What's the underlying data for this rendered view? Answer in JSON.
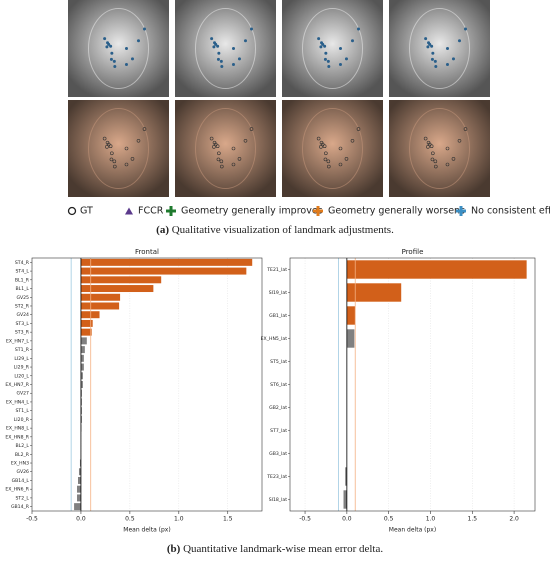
{
  "legend": [
    "GT",
    "FCCR",
    "Geometry generally improves",
    "Geometry generally worsens",
    "No consistent effect"
  ],
  "caption_a": {
    "label": "(a)",
    "text": "Qualitative visualization of landmark adjustments."
  },
  "caption_b": {
    "label": "(b)",
    "text": "Quantitative landmark-wise mean error delta."
  },
  "chart_data": [
    {
      "type": "hbar",
      "title": "Frontal",
      "xlabel": "Mean delta (px)",
      "categories": [
        "ST4_R",
        "ST4_L",
        "BL1_R",
        "BL1_L",
        "GV25",
        "ST2_R",
        "GV24",
        "ST3_L",
        "ST3_R",
        "EX_HN7_L",
        "ST1_R",
        "LI29_L",
        "LI29_R",
        "LI20_L",
        "EX_HN7_R",
        "GV27",
        "EX_HN4_L",
        "ST1_L",
        "LI20_R",
        "EX_HN8_L",
        "EX_HN8_R",
        "BL2_L",
        "BL2_R",
        "EX_HN3",
        "GV26",
        "GB14_L",
        "EX_HN6_R",
        "ST2_L",
        "GB14_R"
      ],
      "values": [
        1.75,
        1.69,
        0.82,
        0.74,
        0.4,
        0.39,
        0.19,
        0.12,
        0.11,
        0.06,
        0.04,
        0.03,
        0.03,
        0.02,
        0.02,
        0.01,
        0.01,
        0.01,
        0.01,
        0.005,
        0,
        0,
        0,
        -0.01,
        -0.02,
        -0.03,
        -0.04,
        -0.04,
        -0.07
      ],
      "colors": [
        "#d2601a",
        "#d2601a",
        "#d2601a",
        "#d2601a",
        "#d2601a",
        "#d2601a",
        "#d2601a",
        "#d2601a",
        "#d2601a",
        "#808080",
        "#808080",
        "#808080",
        "#808080",
        "#808080",
        "#808080",
        "#808080",
        "#808080",
        "#808080",
        "#808080",
        "#808080",
        "#808080",
        "#808080",
        "#808080",
        "#808080",
        "#808080",
        "#808080",
        "#808080",
        "#808080",
        "#808080"
      ],
      "xlim": [
        -0.5,
        1.85
      ],
      "xticks": [
        -0.5,
        {
          "value": 0,
          "label": "0.0"
        },
        0.5,
        {
          "value": 1,
          "label": "1.0"
        },
        1.5
      ],
      "reference_lines": [
        {
          "value": -0.1,
          "color": "#9ecae1"
        },
        {
          "value": 0,
          "color": "#000000"
        },
        {
          "value": 0.1,
          "color": "#f4b183"
        }
      ],
      "grid": true
    },
    {
      "type": "hbar",
      "title": "Profile",
      "xlabel": "Mean delta (px)",
      "categories": [
        "TE21_lat",
        "SI19_lat",
        "GB1_lat",
        "EX_HN5_lat",
        "ST5_lat",
        "ST6_lat",
        "GB2_lat",
        "ST7_lat",
        "GB3_lat",
        "TE23_lat",
        "SI18_lat"
      ],
      "values": [
        2.15,
        0.65,
        0.1,
        0.09,
        0,
        0,
        0,
        0,
        0,
        -0.02,
        -0.04
      ],
      "colors": [
        "#d2601a",
        "#d2601a",
        "#d2601a",
        "#808080",
        "#808080",
        "#808080",
        "#808080",
        "#808080",
        "#808080",
        "#808080",
        "#808080"
      ],
      "xlim": [
        -0.68,
        2.25
      ],
      "xticks": [
        -0.5,
        {
          "value": 0,
          "label": "0.0"
        },
        0.5,
        {
          "value": 1,
          "label": "1.0"
        },
        1.5,
        {
          "value": 2,
          "label": "2.0"
        }
      ],
      "reference_lines": [
        {
          "value": -0.1,
          "color": "#9ecae1"
        },
        {
          "value": 0,
          "color": "#000000"
        },
        {
          "value": 0.1,
          "color": "#f4b183"
        }
      ],
      "grid": true
    }
  ]
}
